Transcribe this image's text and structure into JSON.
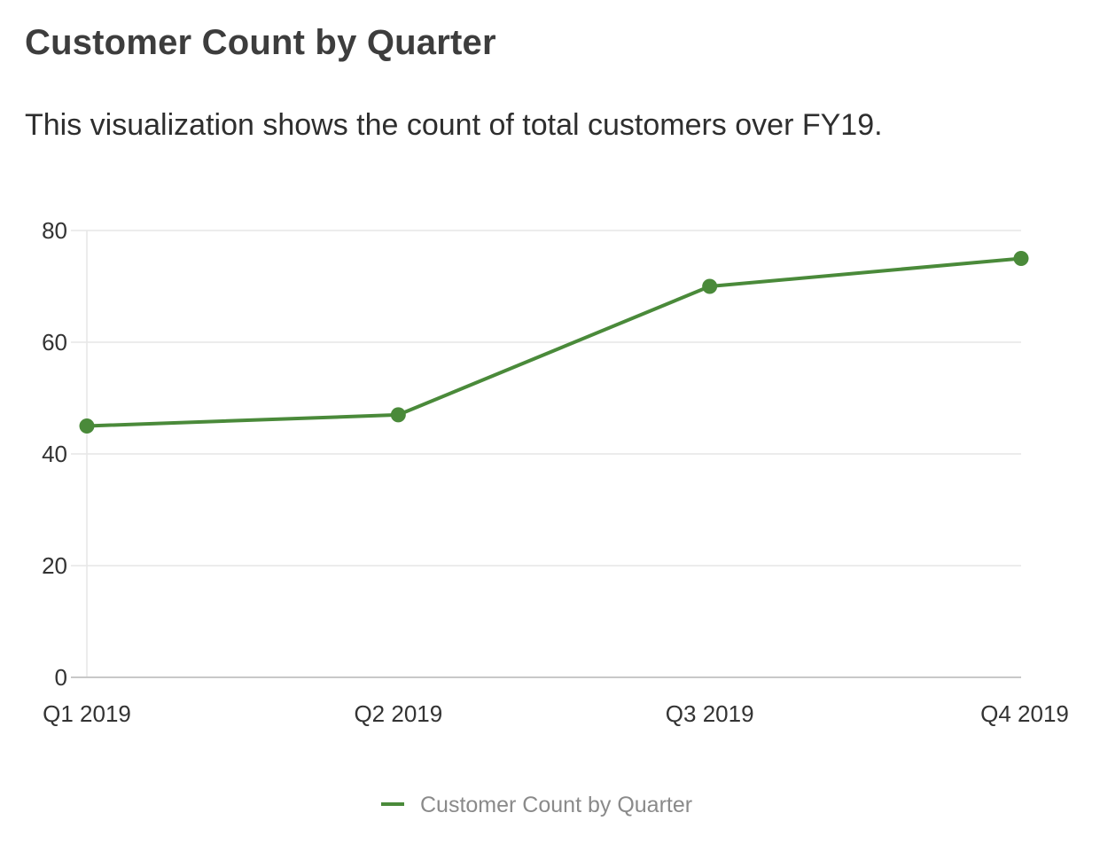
{
  "chart_data": {
    "type": "line",
    "title": "Customer Count by Quarter",
    "subtitle": "This visualization shows the count of total customers over FY19.",
    "categories": [
      "Q1 2019",
      "Q2 2019",
      "Q3 2019",
      "Q4 2019"
    ],
    "series": [
      {
        "name": "Customer Count by Quarter",
        "values": [
          45,
          47,
          70,
          75
        ],
        "color": "#4a8a3a"
      }
    ],
    "xlabel": "",
    "ylabel": "",
    "ylim": [
      0,
      80
    ],
    "yticks": [
      "0",
      "20",
      "40",
      "60",
      "80"
    ],
    "grid": true,
    "legend": "bottom-center",
    "grid_color": "#e6e6e6",
    "axis_color": "#c8c8c8"
  }
}
